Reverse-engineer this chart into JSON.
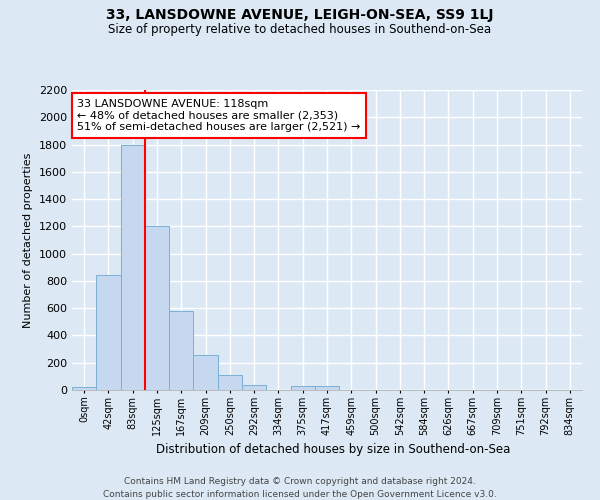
{
  "title": "33, LANSDOWNE AVENUE, LEIGH-ON-SEA, SS9 1LJ",
  "subtitle": "Size of property relative to detached houses in Southend-on-Sea",
  "xlabel": "Distribution of detached houses by size in Southend-on-Sea",
  "ylabel": "Number of detached properties",
  "footer1": "Contains HM Land Registry data © Crown copyright and database right 2024.",
  "footer2": "Contains public sector information licensed under the Open Government Licence v3.0.",
  "bar_labels": [
    "0sqm",
    "42sqm",
    "83sqm",
    "125sqm",
    "167sqm",
    "209sqm",
    "250sqm",
    "292sqm",
    "334sqm",
    "375sqm",
    "417sqm",
    "459sqm",
    "500sqm",
    "542sqm",
    "584sqm",
    "626sqm",
    "667sqm",
    "709sqm",
    "751sqm",
    "792sqm",
    "834sqm"
  ],
  "bar_values": [
    20,
    840,
    1800,
    1200,
    580,
    255,
    110,
    40,
    0,
    30,
    30,
    0,
    0,
    0,
    0,
    0,
    0,
    0,
    0,
    0,
    0
  ],
  "bar_color": "#c5d8f0",
  "bar_edge_color": "#7aafd4",
  "ylim": [
    0,
    2200
  ],
  "yticks": [
    0,
    200,
    400,
    600,
    800,
    1000,
    1200,
    1400,
    1600,
    1800,
    2000,
    2200
  ],
  "vline_x_idx": 2,
  "vline_color": "red",
  "annotation_title": "33 LANSDOWNE AVENUE: 118sqm",
  "annotation_line1": "← 48% of detached houses are smaller (2,353)",
  "annotation_line2": "51% of semi-detached houses are larger (2,521) →",
  "annotation_box_color": "white",
  "annotation_box_edge_color": "red",
  "bg_color": "#dce9f5",
  "plot_bg_color": "#dce9f5",
  "grid_color": "white"
}
